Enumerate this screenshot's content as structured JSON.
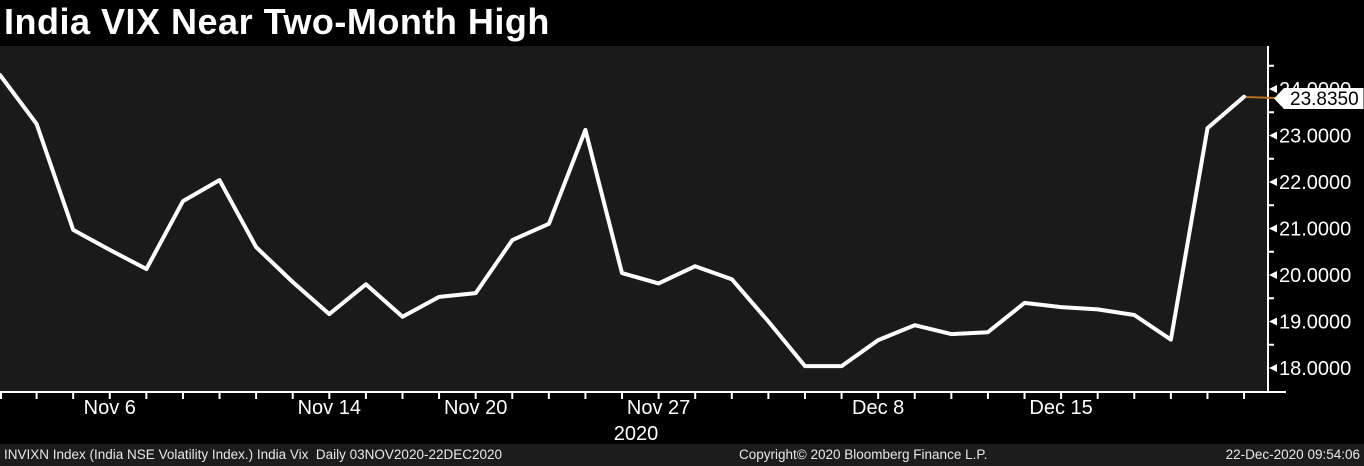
{
  "title": "India VIX Near Two-Month High",
  "last_price_badge": "23.8350",
  "footer": {
    "left": "INVIXN Index (India NSE Volatility Index.) India Vix  Daily 03NOV2020-22DEC2020",
    "center": "Copyright© 2020 Bloomberg Finance L.P.",
    "right": "22-Dec-2020 09:54:06"
  },
  "colors": {
    "page_bg": "#000000",
    "plot_bg": "#1a1a1a",
    "line": "#ffffff",
    "axis": "#ffffff",
    "connector_orange": "#b5731d",
    "badge_bg": "#ffffff",
    "badge_text": "#000000",
    "footer_bg": "#1c1c1c"
  },
  "chart_data": {
    "type": "line",
    "title": "India VIX Near Two-Month High",
    "series_name": "INVIXN Index (India NSE Volatility Index.)",
    "x": [
      "Nov 3",
      "Nov 4",
      "Nov 5",
      "Nov 6",
      "Nov 9",
      "Nov 10",
      "Nov 11",
      "Nov 12",
      "Nov 13",
      "Nov 14",
      "Nov 17",
      "Nov 18",
      "Nov 19",
      "Nov 20",
      "Nov 23",
      "Nov 24",
      "Nov 25",
      "Nov 26",
      "Nov 27",
      "Dec 1",
      "Dec 2",
      "Dec 3",
      "Dec 4",
      "Dec 7",
      "Dec 8",
      "Dec 9",
      "Dec 10",
      "Dec 11",
      "Dec 14",
      "Dec 15",
      "Dec 16",
      "Dec 17",
      "Dec 18",
      "Dec 21",
      "Dec 22"
    ],
    "values": [
      24.3,
      23.25,
      20.97,
      20.54,
      20.13,
      21.59,
      22.04,
      20.6,
      19.85,
      19.16,
      19.8,
      19.1,
      19.53,
      19.61,
      20.75,
      21.1,
      23.12,
      20.04,
      19.82,
      20.19,
      19.91,
      19.0,
      18.04,
      18.04,
      18.6,
      18.92,
      18.73,
      18.77,
      19.4,
      19.31,
      19.26,
      19.14,
      18.61,
      23.16,
      23.835
    ],
    "last_value": 23.835,
    "ylim": [
      17.75,
      24.45
    ],
    "grid": false,
    "legend": false,
    "y_axis": {
      "labels": [
        "24.0000",
        "23.0000",
        "22.0000",
        "21.0000",
        "20.0000",
        "19.0000",
        "18.0000"
      ],
      "minor_tick_values": [
        24.5,
        23.5,
        22.5,
        21.5,
        20.5,
        19.5,
        18.5
      ]
    },
    "x_axis": {
      "labels": [
        {
          "label": "Nov 6",
          "day_index": 3
        },
        {
          "label": "Nov 14",
          "day_index": 9
        },
        {
          "label": "Nov 20",
          "day_index": 13
        },
        {
          "label": "Nov 27",
          "day_index": 18
        },
        {
          "label": "Dec 8",
          "day_index": 24
        },
        {
          "label": "Dec 15",
          "day_index": 29
        }
      ],
      "year": "2020"
    }
  }
}
